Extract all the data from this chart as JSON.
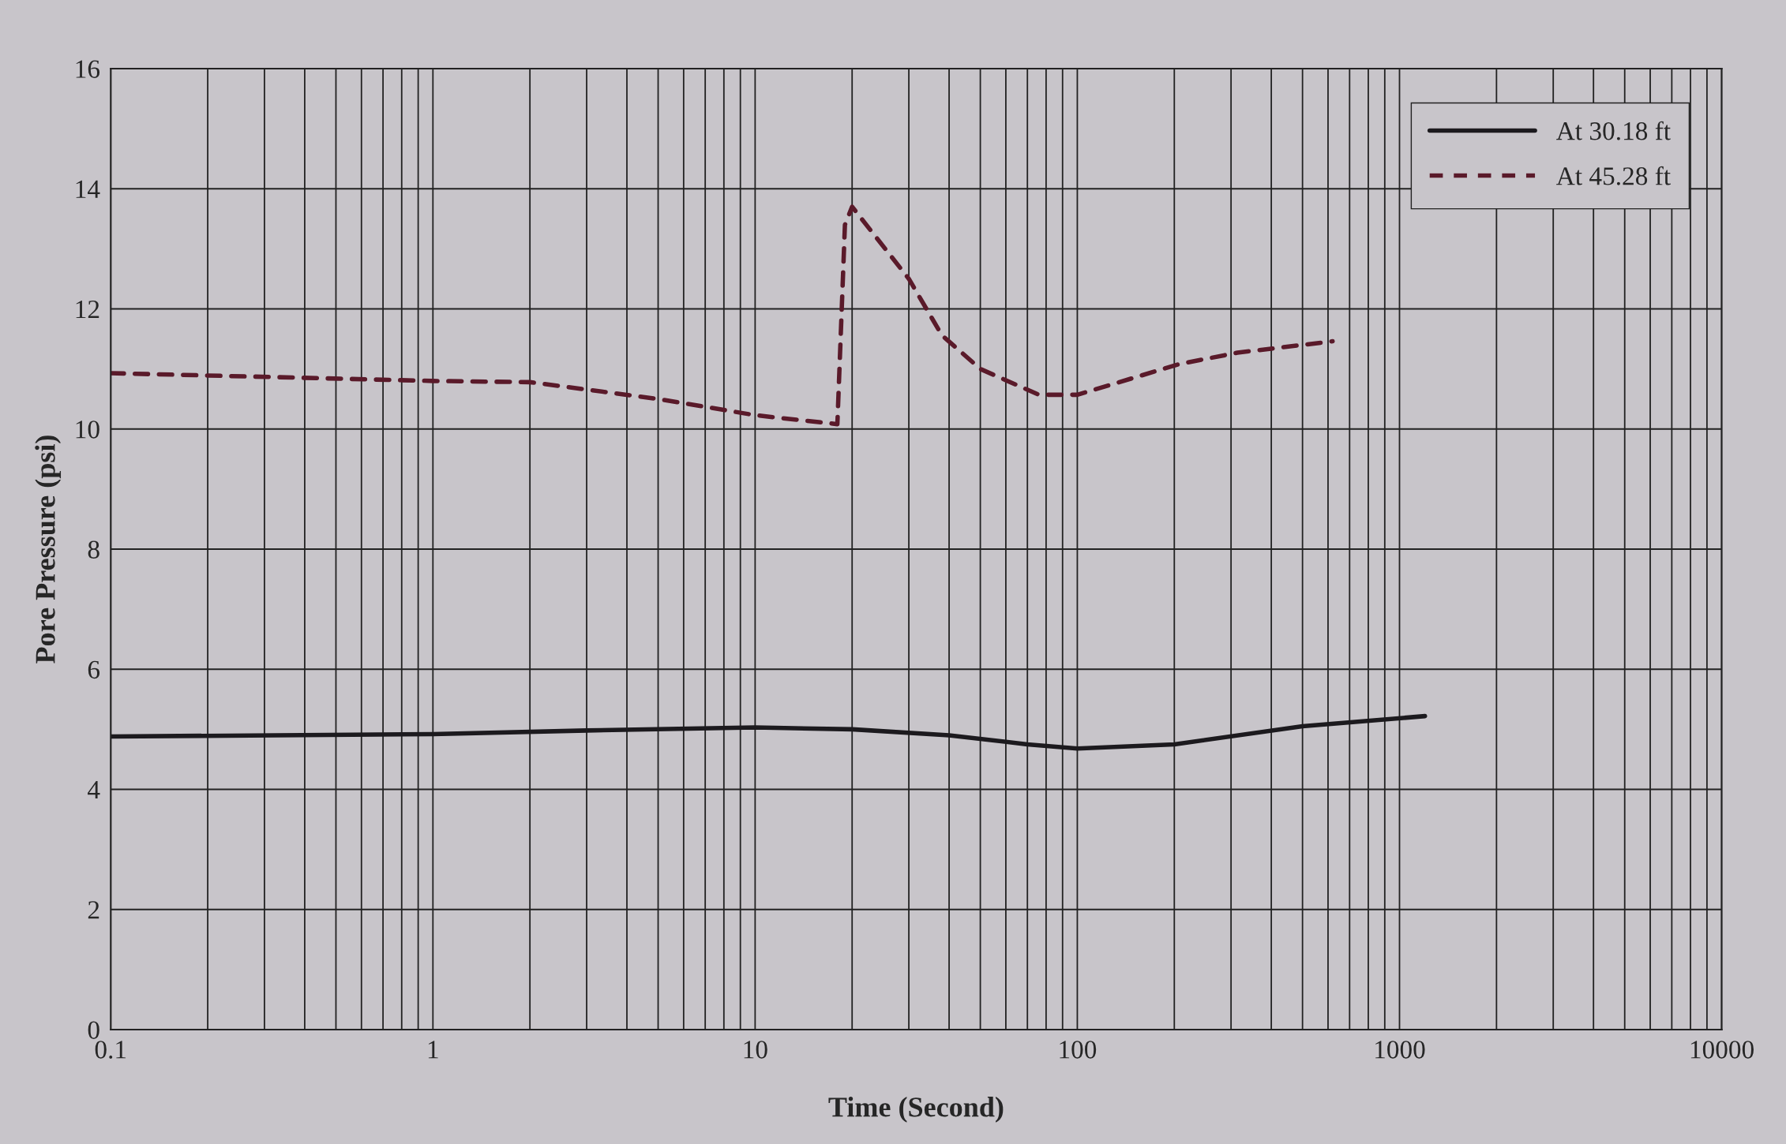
{
  "chart_data": {
    "type": "line",
    "xlabel": "Time (Second)",
    "ylabel": "Pore Pressure (psi)",
    "log": "x",
    "grid": true,
    "legend": "top right",
    "xlim": [
      0.1,
      10000
    ],
    "xticks": [
      0.1,
      1,
      10,
      100,
      1000,
      10000
    ],
    "ylim": [
      0,
      16
    ],
    "yticks": [
      0,
      2,
      4,
      6,
      8,
      10,
      12,
      14,
      16
    ],
    "series": [
      {
        "name": "At 30.18 ft",
        "color": "#1c1a1e",
        "line_style": "solid",
        "x": [
          0.1,
          1,
          3,
          10,
          20,
          40,
          70,
          100,
          200,
          500,
          1200
        ],
        "values": [
          4.88,
          4.92,
          4.98,
          5.03,
          5.0,
          4.9,
          4.75,
          4.68,
          4.75,
          5.05,
          5.22
        ]
      },
      {
        "name": "At 45.28 ft",
        "color": "#5a1a2a",
        "line_style": "dashed",
        "x": [
          0.1,
          1,
          2,
          5,
          10,
          18,
          19,
          20,
          30,
          38,
          50,
          76,
          100,
          207,
          314,
          620
        ],
        "values": [
          10.93,
          10.8,
          10.78,
          10.5,
          10.23,
          10.08,
          13.4,
          13.7,
          12.5,
          11.56,
          11.0,
          10.57,
          10.57,
          11.08,
          11.27,
          11.46
        ]
      }
    ]
  }
}
